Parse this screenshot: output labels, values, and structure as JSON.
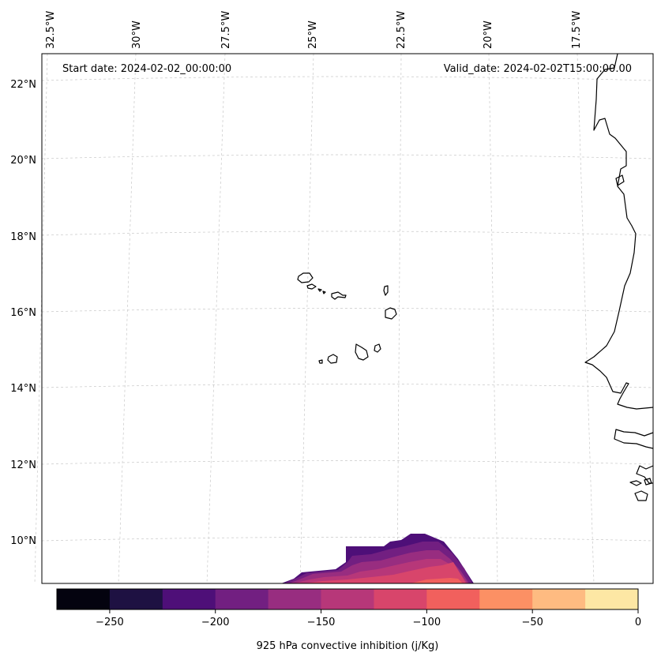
{
  "map": {
    "start_label": "Start date: 2024-02-02_00:00:00",
    "valid_label": "Valid_date: 2024-02-02T15:00:00.00",
    "lon_labels": [
      "32.5°W",
      "30°W",
      "27.5°W",
      "25°W",
      "22.5°W",
      "20°W",
      "17.5°W"
    ],
    "lat_labels": [
      "22°N",
      "20°N",
      "18°N",
      "16°N",
      "14°N",
      "12°N",
      "10°N"
    ],
    "region": "Cape Verde Islands and West African coast (Senegal / Gambia / Guinea-Bissau)"
  },
  "colorbar": {
    "label": "925 hPa convective inhibition (j/Kg)",
    "tick_labels": [
      "−250",
      "−200",
      "−150",
      "−100",
      "−50",
      "0"
    ],
    "tick_values": [
      -250,
      -200,
      -150,
      -100,
      -50,
      0
    ],
    "bounds": [
      -275,
      -250,
      -225,
      -200,
      -175,
      -150,
      -125,
      -100,
      -75,
      -50,
      -25,
      0
    ],
    "colors": [
      "#04030f",
      "#1e1142",
      "#4e0f78",
      "#721f81",
      "#982d80",
      "#b73779",
      "#d8456b",
      "#f1605d",
      "#fc9064",
      "#febb81",
      "#fde7a4"
    ]
  }
}
